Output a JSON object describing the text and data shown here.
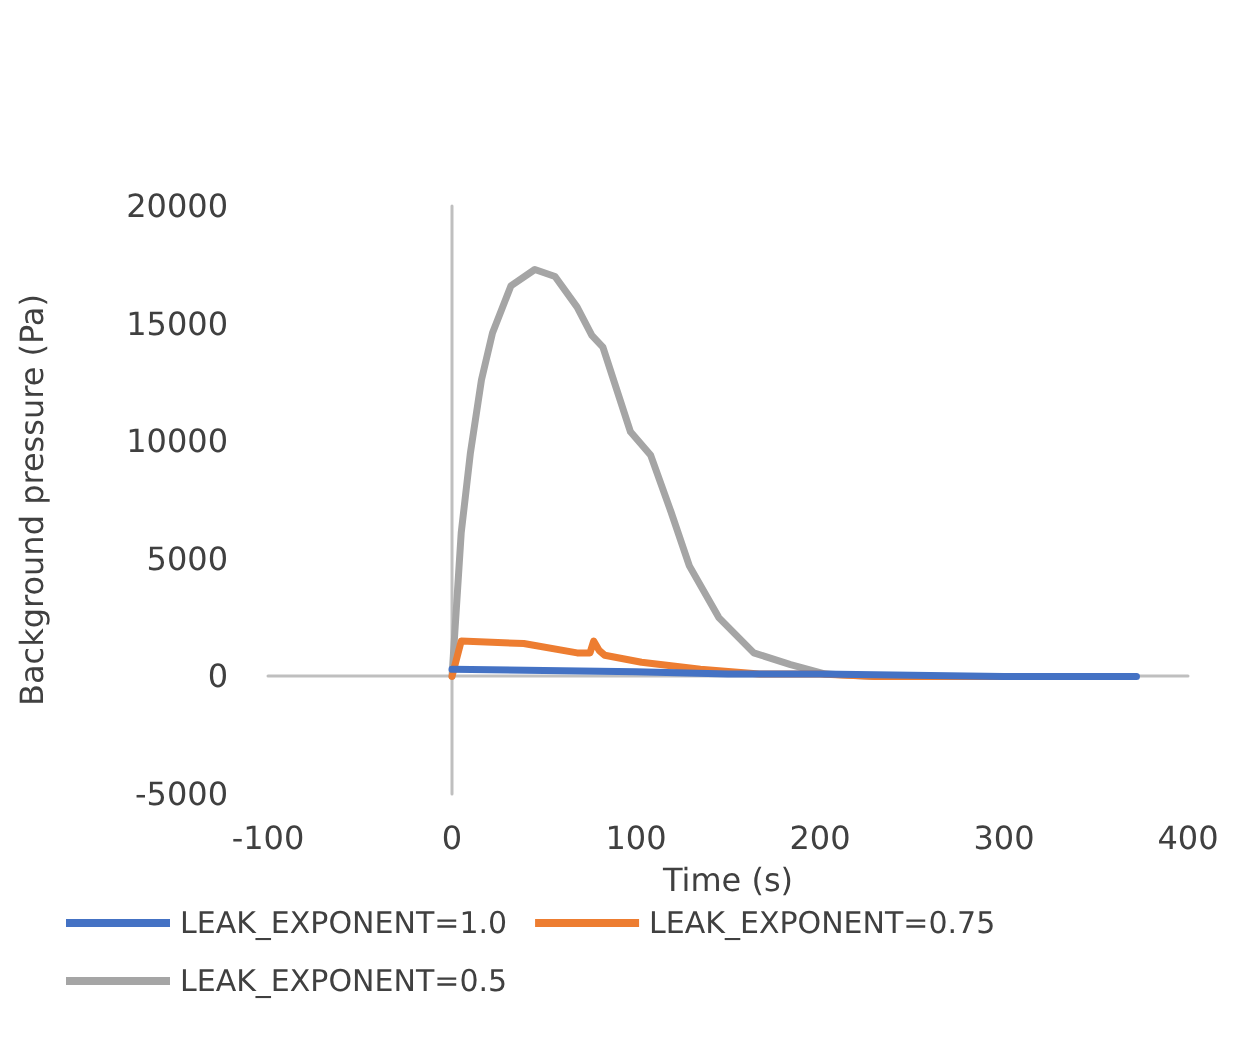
{
  "chart_data": {
    "type": "line",
    "xlabel": "Time (s)",
    "ylabel": "Background pressure (Pa)",
    "xlim": [
      -100,
      400
    ],
    "xticks": [
      -100,
      0,
      100,
      200,
      300,
      400
    ],
    "ylim": [
      -5000,
      20000
    ],
    "yticks": [
      -5000,
      0,
      5000,
      10000,
      15000,
      20000
    ],
    "legend": "bottom",
    "marker": "none",
    "line_style": "solid",
    "series": [
      {
        "name": "LEAK_EXPONENT=1.0",
        "color": "#4472c4",
        "x": [
          0,
          50,
          100,
          150,
          200,
          300,
          372
        ],
        "values": [
          300,
          250,
          200,
          100,
          100,
          0,
          0
        ]
      },
      {
        "name": "LEAK_EXPONENT=0.75",
        "color": "#ed7d31",
        "x": [
          0,
          5,
          39,
          68,
          75,
          77,
          80,
          83,
          103,
          135,
          167,
          200,
          230,
          300
        ],
        "values": [
          0,
          1500,
          1400,
          1000,
          1000,
          1500,
          1100,
          900,
          600,
          300,
          100,
          100,
          0,
          0
        ]
      },
      {
        "name": "LEAK_EXPONENT=0.5",
        "color": "#a5a5a5",
        "x": [
          0,
          5,
          10,
          16,
          22,
          32,
          45,
          56,
          68,
          76,
          82,
          97,
          108,
          119,
          129,
          145,
          164,
          184,
          203,
          230,
          301
        ],
        "values": [
          0,
          6100,
          9500,
          12600,
          14600,
          16600,
          17300,
          17000,
          15700,
          14500,
          14000,
          10400,
          9400,
          7000,
          4700,
          2500,
          1000,
          500,
          100,
          0,
          0
        ]
      }
    ]
  }
}
